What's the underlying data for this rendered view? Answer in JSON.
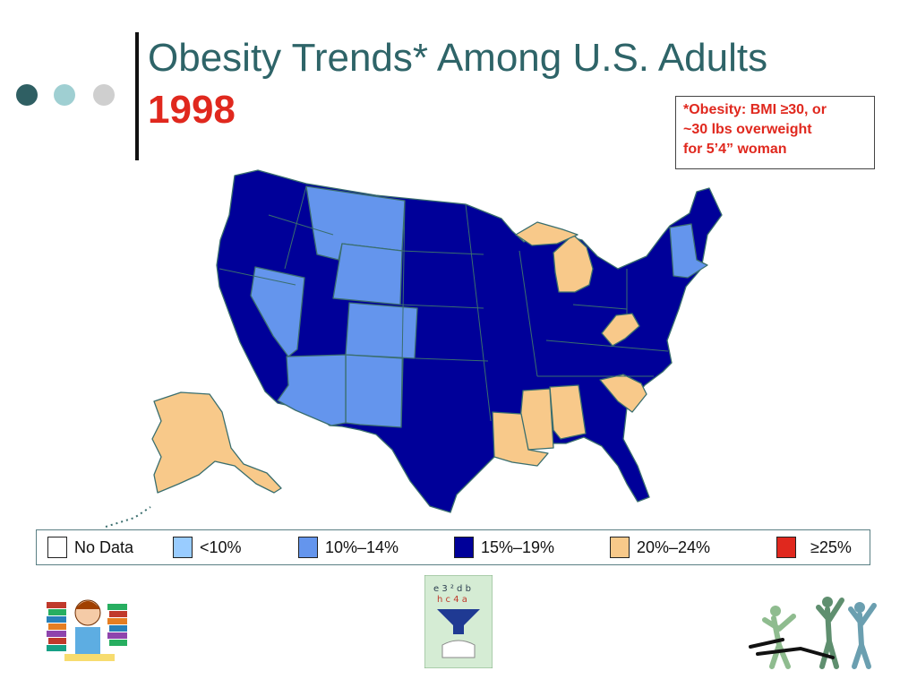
{
  "slide": {
    "title": "Obesity Trends* Among U.S. Adults",
    "year": "1998",
    "footnote": "*Obesity: BMI ≥30, or\n~30 lbs overweight\nfor 5’4” woman"
  },
  "legend": [
    {
      "label": "No Data",
      "color": "#ffffff"
    },
    {
      "label": "<10%",
      "color": "#99ccff"
    },
    {
      "label": "10%–14%",
      "color": "#6495ed"
    },
    {
      "label": "15%–19%",
      "color": "#000099"
    },
    {
      "label": "20%–24%",
      "color": "#f8c98a"
    },
    {
      "label": "≥25%",
      "color": "#e0281e"
    }
  ],
  "map_colors": {
    "c10_14": "#6495ed",
    "c15_19": "#000099",
    "c20_24": "#f8c98a",
    "border": "#3a6e6e"
  },
  "images": {
    "left": "student-with-books-illustration",
    "center": "sorting-funnel-illustration",
    "right": "dancers-silhouettes-illustration"
  }
}
